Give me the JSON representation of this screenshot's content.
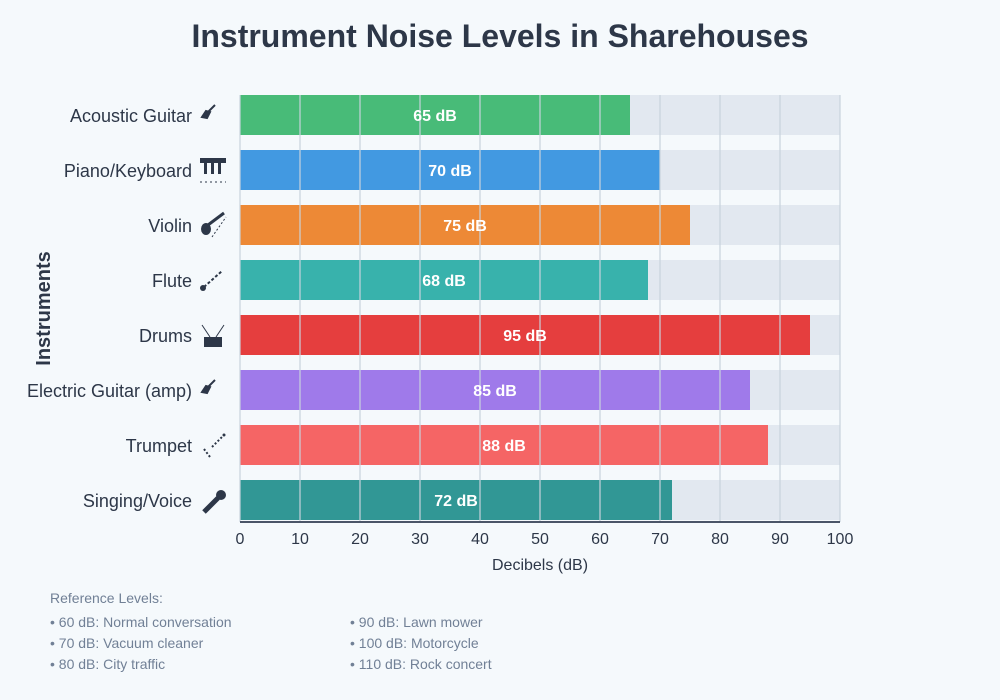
{
  "chart_data": {
    "type": "bar",
    "orientation": "horizontal",
    "title": "Instrument Noise Levels in Sharehouses",
    "xlabel": "Decibels (dB)",
    "ylabel": "Instruments",
    "xlim": [
      0,
      100
    ],
    "xticks": [
      0,
      10,
      20,
      30,
      40,
      50,
      60,
      70,
      80,
      90,
      100
    ],
    "grid": true,
    "categories": [
      "Acoustic Guitar",
      "Piano/Keyboard",
      "Violin",
      "Flute",
      "Drums",
      "Electric Guitar (amp)",
      "Trumpet",
      "Singing/Voice"
    ],
    "icons": [
      "guitar-icon",
      "piano-icon",
      "violin-icon",
      "flute-icon",
      "drum-icon",
      "guitar-icon",
      "trumpet-icon",
      "microphone-icon"
    ],
    "values": [
      65,
      70,
      75,
      68,
      95,
      85,
      88,
      72
    ],
    "data_labels": [
      "65 dB",
      "70 dB",
      "75 dB",
      "68 dB",
      "95 dB",
      "85 dB",
      "88 dB",
      "72 dB"
    ],
    "colors": [
      "#48bb78",
      "#4299e1",
      "#ed8936",
      "#38b2ac",
      "#e53e3e",
      "#9f7aea",
      "#f56565",
      "#319795"
    ],
    "track_color": "#e2e8f0"
  },
  "reference": {
    "title": "Reference Levels:",
    "left": [
      "• 60 dB: Normal conversation",
      "• 70 dB: Vacuum cleaner",
      "• 80 dB: City traffic"
    ],
    "right": [
      "• 90 dB: Lawn mower",
      "• 100 dB: Motorcycle",
      "• 110 dB: Rock concert"
    ]
  }
}
